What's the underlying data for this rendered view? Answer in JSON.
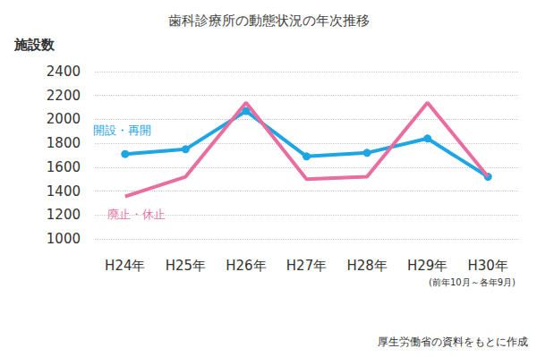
{
  "chart_data": {
    "type": "line",
    "title": "歯科診療所の動態状況の年次推移",
    "ylabel": "施設数",
    "categories": [
      "H24年",
      "H25年",
      "H26年",
      "H27年",
      "H28年",
      "H29年",
      "H30年"
    ],
    "series": [
      {
        "name": "開設・再開",
        "color": "#1ea6e4",
        "marker": "circle",
        "values": [
          1710,
          1750,
          2070,
          1690,
          1720,
          1840,
          1520
        ]
      },
      {
        "name": "廃止・休止",
        "color": "#ea6d9f",
        "marker": "none",
        "values": [
          1355,
          1520,
          2140,
          1500,
          1520,
          2140,
          1520
        ]
      }
    ],
    "ylim": [
      1000,
      2400
    ],
    "yticks": [
      1000,
      1200,
      1400,
      1600,
      1800,
      2000,
      2200,
      2400
    ],
    "grid": true,
    "annotations": [
      {
        "text": "(前年10月～各年9月)"
      },
      {
        "text": "厚生労働省の資料をもとに作成"
      }
    ]
  }
}
